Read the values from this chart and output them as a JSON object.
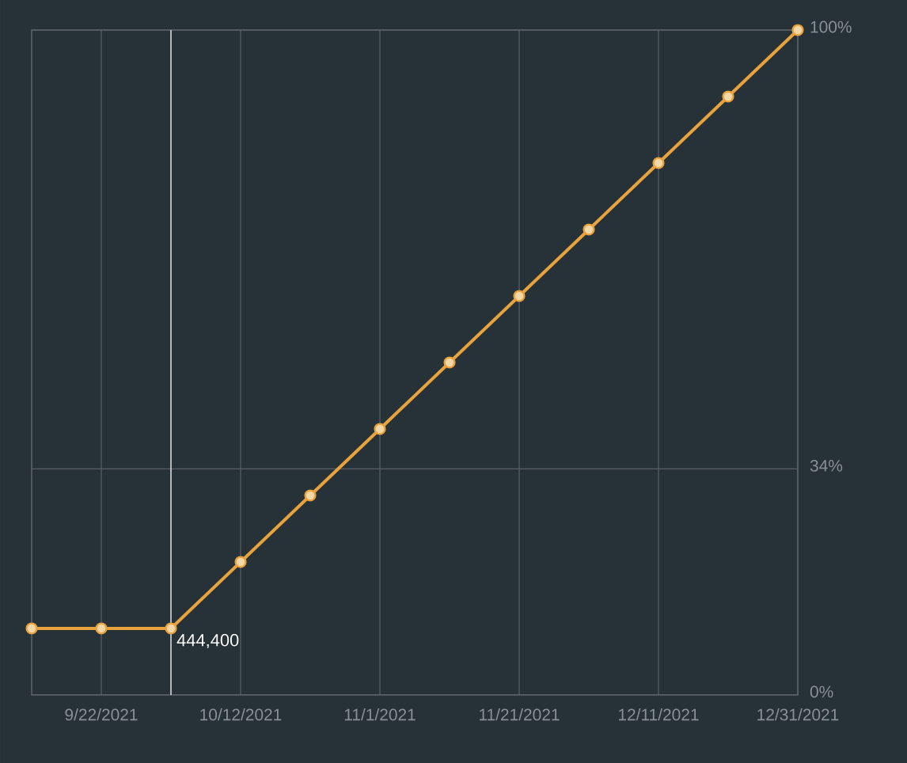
{
  "chart_data": {
    "type": "line",
    "x": [
      "2021-09-12",
      "2021-09-22",
      "2021-10-02",
      "2021-10-12",
      "2021-10-22",
      "2021-11-01",
      "2021-11-11",
      "2021-11-21",
      "2021-12-01",
      "2021-12-11",
      "2021-12-21",
      "2021-12-31"
    ],
    "series": [
      {
        "color": "#e8a33d",
        "values": [
          10,
          10,
          10,
          20,
          30,
          40,
          50,
          60,
          70,
          80,
          90,
          100
        ]
      }
    ],
    "xlim": [
      "2021-09-12",
      "2021-12-31"
    ],
    "ylim": [
      0,
      100
    ],
    "xticks": [
      {
        "value": "2021-09-22",
        "label": "9/22/2021"
      },
      {
        "value": "2021-10-12",
        "label": "10/12/2021"
      },
      {
        "value": "2021-11-01",
        "label": "11/1/2021"
      },
      {
        "value": "2021-11-21",
        "label": "11/21/2021"
      },
      {
        "value": "2021-12-11",
        "label": "12/11/2021"
      },
      {
        "value": "2021-12-31",
        "label": "12/31/2021"
      }
    ],
    "yticks": [
      {
        "value": 0,
        "label": "0%"
      },
      {
        "value": 34,
        "label": "34%"
      },
      {
        "value": 100,
        "label": "100%"
      }
    ],
    "ref_lines": [
      {
        "axis": "x",
        "value": "2021-10-02",
        "color": "#d8dadc"
      }
    ],
    "annotations": [
      {
        "text": "444,400",
        "x": "2021-10-02",
        "y": 10
      }
    ],
    "grid": true,
    "marker": "circle",
    "line_style": "solid"
  }
}
